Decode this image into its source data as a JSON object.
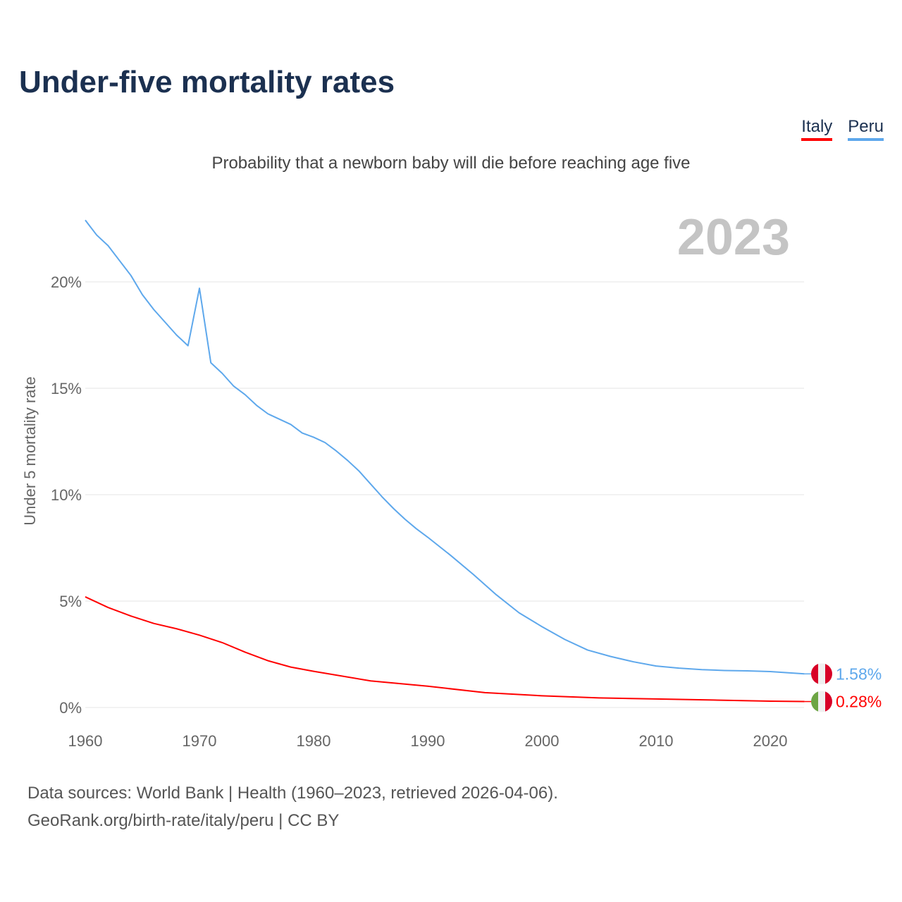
{
  "chart_data": {
    "type": "line",
    "title": "Under-five mortality rates",
    "subtitle": "Probability that a newborn baby will die before reaching age five",
    "ylabel": "Under 5 mortality rate",
    "xlabel": "",
    "year_label": "2023",
    "xlim": [
      1960,
      2023
    ],
    "ylim": [
      0,
      23
    ],
    "x_ticks": [
      1960,
      1970,
      1980,
      1990,
      2000,
      2010,
      2020
    ],
    "y_ticks": [
      0,
      5,
      10,
      15,
      20
    ],
    "y_tick_labels": [
      "0%",
      "5%",
      "10%",
      "15%",
      "20%"
    ],
    "legend_placement": "top-right",
    "series": [
      {
        "name": "Italy",
        "color": "#ff0000",
        "end_label": "0.28%",
        "flag": [
          "#6da544",
          "#f0f0f0",
          "#d80027"
        ],
        "x": [
          1960,
          1962,
          1964,
          1966,
          1968,
          1970,
          1972,
          1974,
          1976,
          1978,
          1980,
          1985,
          1990,
          1995,
          2000,
          2005,
          2010,
          2015,
          2020,
          2023
        ],
        "y": [
          5.2,
          4.7,
          4.3,
          3.95,
          3.7,
          3.4,
          3.05,
          2.6,
          2.2,
          1.9,
          1.7,
          1.25,
          1.0,
          0.7,
          0.55,
          0.45,
          0.4,
          0.35,
          0.3,
          0.28
        ]
      },
      {
        "name": "Peru",
        "color": "#5ea8ec",
        "end_label": "1.58%",
        "flag": [
          "#d80027",
          "#f0f0f0",
          "#d80027"
        ],
        "x": [
          1960,
          1961,
          1962,
          1963,
          1964,
          1965,
          1966,
          1967,
          1968,
          1969,
          1970,
          1971,
          1972,
          1973,
          1974,
          1975,
          1976,
          1978,
          1979,
          1980,
          1981,
          1982,
          1983,
          1984,
          1985,
          1986,
          1987,
          1988,
          1989,
          1990,
          1992,
          1994,
          1996,
          1998,
          2000,
          2002,
          2004,
          2006,
          2008,
          2010,
          2012,
          2014,
          2016,
          2018,
          2020,
          2023
        ],
        "y": [
          22.9,
          22.2,
          21.7,
          21.0,
          20.3,
          19.4,
          18.7,
          18.1,
          17.5,
          17.0,
          19.7,
          16.2,
          15.7,
          15.1,
          14.7,
          14.2,
          13.8,
          13.3,
          12.9,
          12.7,
          12.45,
          12.05,
          11.6,
          11.1,
          10.5,
          9.9,
          9.35,
          8.85,
          8.4,
          8.0,
          7.15,
          6.25,
          5.3,
          4.45,
          3.8,
          3.2,
          2.7,
          2.4,
          2.15,
          1.95,
          1.85,
          1.78,
          1.74,
          1.72,
          1.69,
          1.58
        ]
      }
    ]
  },
  "source_line1": "Data sources: World Bank | Health (1960–2023, retrieved 2026-04-06).",
  "source_line2": "GeoRank.org/birth-rate/italy/peru | CC BY"
}
